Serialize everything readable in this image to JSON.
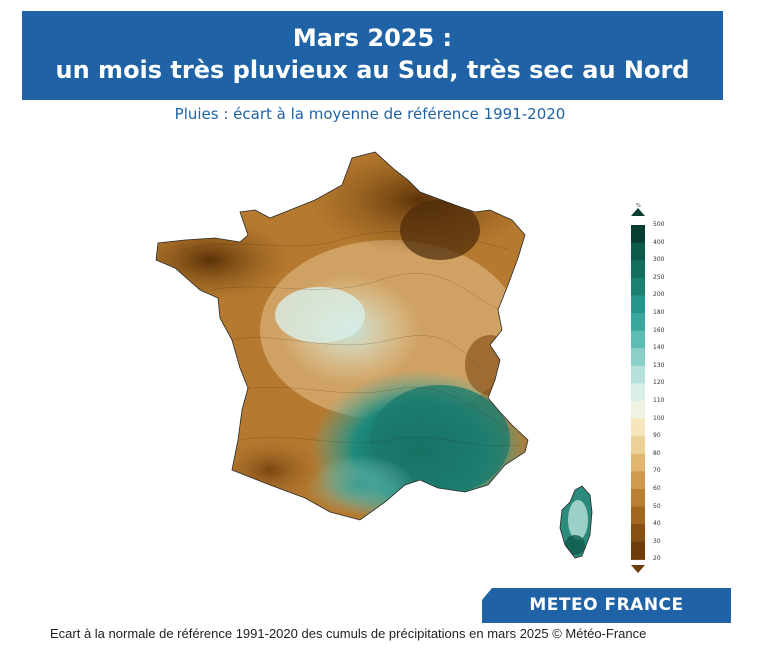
{
  "header": {
    "title_line1": "Mars 2025 :",
    "title_line2": "un mois très pluvieux au Sud, très sec au Nord"
  },
  "subtitle": "Pluies : écart à la moyenne de référence 1991-2020",
  "legend": {
    "unit": "%",
    "labels": [
      "500",
      "400",
      "300",
      "250",
      "200",
      "180",
      "160",
      "140",
      "130",
      "120",
      "110",
      "100",
      "90",
      "80",
      "70",
      "60",
      "50",
      "40",
      "30",
      "20"
    ],
    "colors": [
      "#0a3d32",
      "#0d5a4a",
      "#136e5e",
      "#1a8070",
      "#25948a",
      "#3aa79e",
      "#5bbdb4",
      "#8ad0c9",
      "#b6e1da",
      "#d9efe8",
      "#f1f3e2",
      "#f5e6bd",
      "#ecd196",
      "#e0b670",
      "#cf9a4e",
      "#bb7f33",
      "#a2661f",
      "#875012",
      "#6e3d0a"
    ]
  },
  "brand": "METEO FRANCE",
  "caption": "Ecart à la normale de référence 1991-2020 des cumuls de précipitations en mars 2025 © Météo-France"
}
